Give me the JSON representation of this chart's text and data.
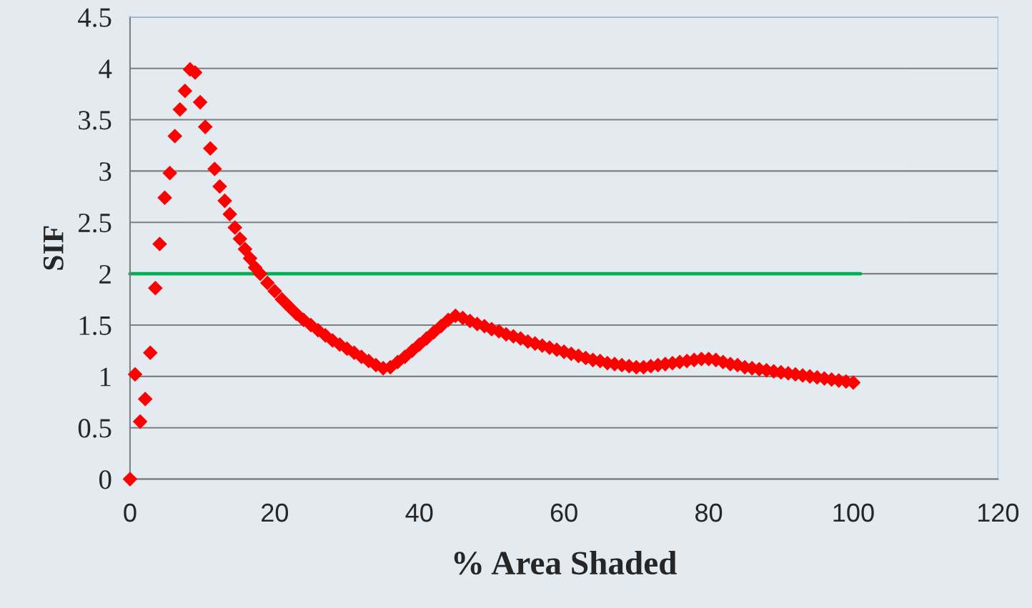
{
  "chart_data": {
    "type": "scatter",
    "xlabel": "% Area Shaded",
    "ylabel": "SIF",
    "xlim": [
      0,
      120
    ],
    "xticks": [
      0,
      20,
      40,
      60,
      80,
      100,
      120
    ],
    "ylim": [
      0,
      4.5
    ],
    "yticks": [
      0,
      0.5,
      1,
      1.5,
      2,
      2.5,
      3,
      3.5,
      4,
      4.5
    ],
    "grid": "y",
    "legend": false,
    "marker": "diamond",
    "series": [
      {
        "color": "#ff0000",
        "x": [
          0,
          0.7,
          1.4,
          2.1,
          2.8,
          3.5,
          4.1,
          4.8,
          5.5,
          6.2,
          6.9,
          7.6,
          8.3,
          9.0,
          9.7,
          10.4,
          11.1,
          11.7,
          12.4,
          13.1,
          13.8,
          14.5,
          15.2,
          15.9,
          16.6,
          17.3,
          18,
          19,
          20,
          21,
          22,
          23,
          24,
          25,
          26,
          27,
          28,
          29,
          30,
          31,
          32,
          33,
          34,
          35,
          36,
          37,
          38,
          39,
          40,
          41,
          42,
          43,
          44,
          45,
          46,
          47,
          48,
          49,
          50,
          51,
          52,
          53,
          54,
          55,
          56,
          57,
          58,
          59,
          60,
          61,
          62,
          63,
          64,
          65,
          66,
          67,
          68,
          69,
          70,
          71,
          72,
          73,
          74,
          75,
          76,
          77,
          78,
          79,
          80,
          81,
          82,
          83,
          84,
          85,
          86,
          87,
          88,
          89,
          90,
          91,
          92,
          93,
          94,
          95,
          96,
          97,
          98,
          99,
          100
        ],
        "values": [
          0,
          1.02,
          0.56,
          0.78,
          1.23,
          1.86,
          2.29,
          2.74,
          2.98,
          3.34,
          3.6,
          3.78,
          3.99,
          3.96,
          3.67,
          3.43,
          3.22,
          3.02,
          2.85,
          2.71,
          2.58,
          2.45,
          2.34,
          2.24,
          2.15,
          2.06,
          2.0,
          1.91,
          1.83,
          1.75,
          1.68,
          1.61,
          1.55,
          1.5,
          1.45,
          1.4,
          1.35,
          1.31,
          1.27,
          1.23,
          1.19,
          1.15,
          1.11,
          1.08,
          1.09,
          1.14,
          1.19,
          1.25,
          1.31,
          1.37,
          1.43,
          1.49,
          1.55,
          1.59,
          1.57,
          1.54,
          1.51,
          1.49,
          1.46,
          1.44,
          1.41,
          1.39,
          1.37,
          1.34,
          1.32,
          1.3,
          1.28,
          1.26,
          1.24,
          1.22,
          1.2,
          1.18,
          1.16,
          1.15,
          1.13,
          1.12,
          1.11,
          1.1,
          1.09,
          1.09,
          1.1,
          1.11,
          1.12,
          1.13,
          1.14,
          1.15,
          1.16,
          1.17,
          1.17,
          1.16,
          1.14,
          1.12,
          1.11,
          1.09,
          1.08,
          1.07,
          1.06,
          1.05,
          1.04,
          1.03,
          1.02,
          1.01,
          1.0,
          0.99,
          0.98,
          0.97,
          0.96,
          0.95,
          0.94
        ]
      },
      {
        "type": "line",
        "color": "#00b050",
        "marker": "none",
        "x": [
          0,
          101
        ],
        "values": [
          2,
          2
        ]
      }
    ]
  }
}
